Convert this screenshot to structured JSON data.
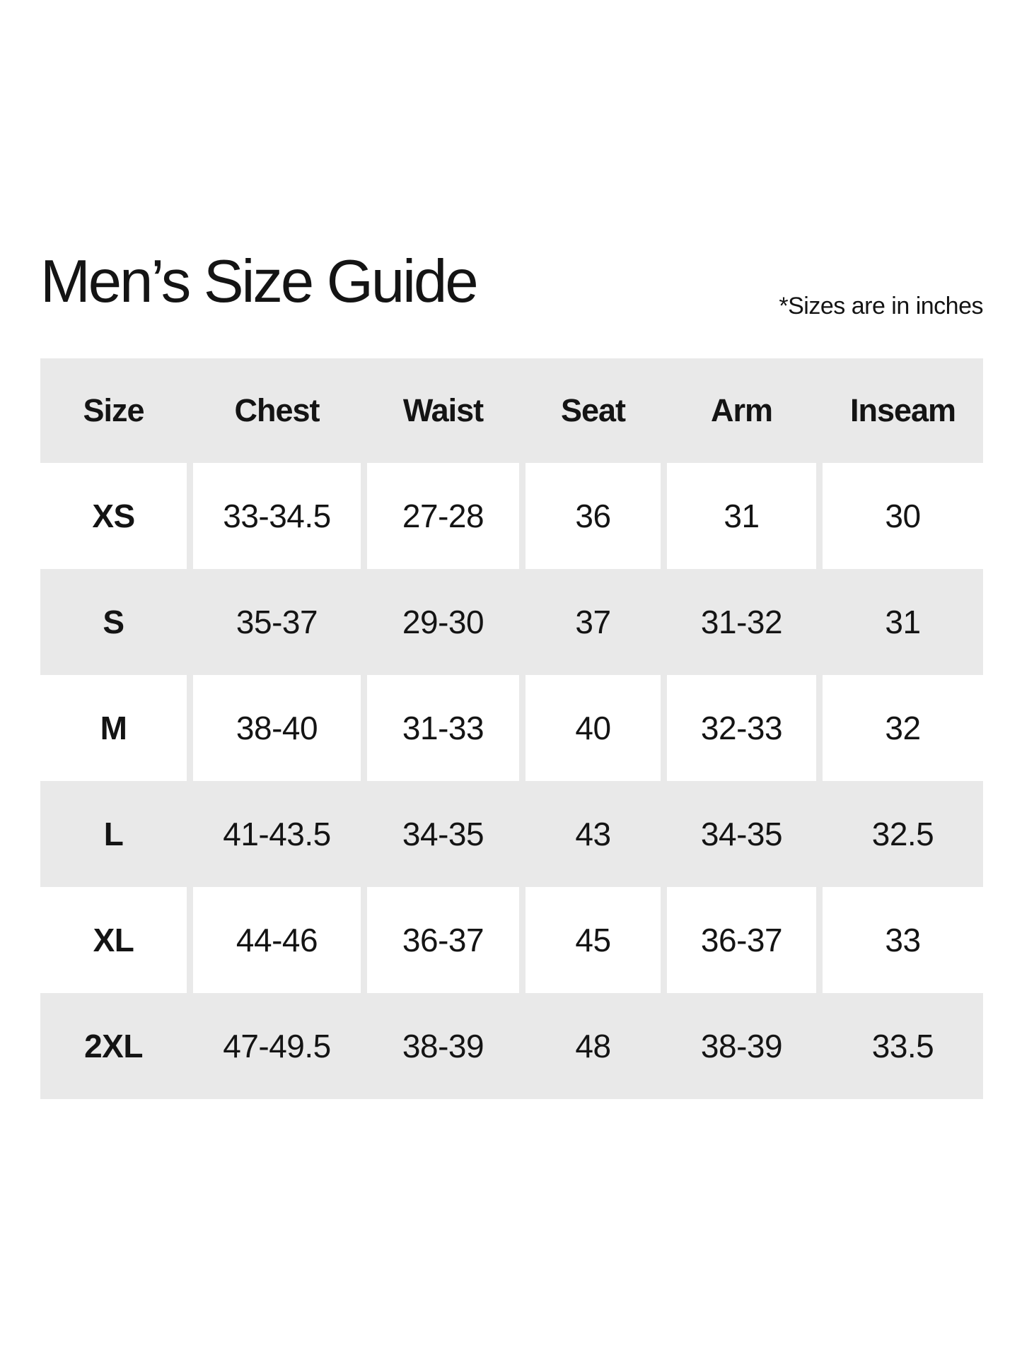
{
  "page": {
    "title": "Men’s Size Guide",
    "note": "*Sizes are in inches"
  },
  "colors": {
    "row_shade": "#e9e9e9",
    "text": "#141414",
    "background": "#ffffff"
  },
  "table": {
    "columns": [
      "Size",
      "Chest",
      "Waist",
      "Seat",
      "Arm",
      "Inseam"
    ],
    "rows": [
      [
        "XS",
        "33-34.5",
        "27-28",
        "36",
        "31",
        "30"
      ],
      [
        "S",
        "35-37",
        "29-30",
        "37",
        "31-32",
        "31"
      ],
      [
        "M",
        "38-40",
        "31-33",
        "40",
        "32-33",
        "32"
      ],
      [
        "L",
        "41-43.5",
        "34-35",
        "43",
        "34-35",
        "32.5"
      ],
      [
        "XL",
        "44-46",
        "36-37",
        "45",
        "36-37",
        "33"
      ],
      [
        "2XL",
        "47-49.5",
        "38-39",
        "48",
        "38-39",
        "33.5"
      ]
    ]
  }
}
